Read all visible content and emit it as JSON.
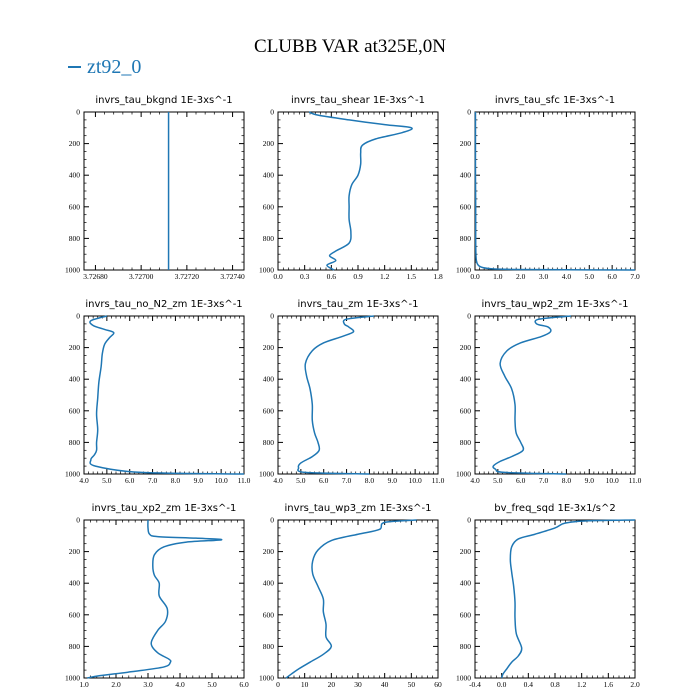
{
  "title": "CLUBB VAR at325E,0N",
  "legend": {
    "label": "zt92_0",
    "color": "#1f77b4"
  },
  "chart_data": [
    {
      "type": "line",
      "title": "invrs_tau_bkgnd   1E-3xs^-1",
      "xlim": [
        3.72675,
        3.72745
      ],
      "ylim": [
        0,
        1000
      ],
      "y_inverted": true,
      "xticks": [
        3.7268,
        3.727,
        3.7272,
        3.7274
      ],
      "xtick_labels": [
        "3.72680",
        "3.72700",
        "3.72720",
        "3.72740"
      ],
      "yticks": [
        0,
        200,
        400,
        600,
        800,
        1000
      ],
      "series": [
        {
          "x": [
            3.72712,
            3.72712
          ],
          "y": [
            0,
            1000
          ]
        }
      ]
    },
    {
      "type": "line",
      "title": "invrs_tau_shear   1E-3xs^-1",
      "xlim": [
        0,
        1.8
      ],
      "ylim": [
        0,
        1000
      ],
      "y_inverted": true,
      "xticks": [
        0,
        0.3,
        0.6,
        0.9,
        1.2,
        1.5,
        1.8
      ],
      "xtick_labels": [
        "0.0",
        "0.3",
        "0.6",
        "0.9",
        "1.2",
        "1.5",
        "1.8"
      ],
      "yticks": [
        0,
        200,
        400,
        600,
        800,
        1000
      ],
      "series": [
        {
          "x": [
            0.35,
            0.45,
            0.8,
            1.2,
            1.5,
            1.4,
            1.1,
            0.95,
            0.93,
            0.93,
            0.9,
            0.83,
            0.8,
            0.8,
            0.8,
            0.82,
            0.8,
            0.65,
            0.58,
            0.65,
            0.55,
            0.63
          ],
          "y": [
            0,
            20,
            50,
            80,
            100,
            130,
            170,
            210,
            260,
            330,
            400,
            460,
            530,
            600,
            680,
            760,
            830,
            880,
            910,
            940,
            970,
            1000
          ]
        }
      ]
    },
    {
      "type": "line",
      "title": "invrs_tau_sfc   1E-3xs^-1",
      "xlim": [
        0,
        7
      ],
      "ylim": [
        0,
        1000
      ],
      "y_inverted": true,
      "xticks": [
        0,
        1,
        2,
        3,
        4,
        5,
        6,
        7
      ],
      "xtick_labels": [
        "0.0",
        "1.0",
        "2.0",
        "3.0",
        "4.0",
        "5.0",
        "6.0",
        "7.0"
      ],
      "yticks": [
        0,
        200,
        400,
        600,
        800,
        1000
      ],
      "series": [
        {
          "x": [
            0.02,
            0.02,
            0.02,
            0.03,
            0.03,
            0.04,
            0.06,
            0.1,
            0.18,
            0.35,
            0.7,
            1.5,
            3.0,
            7.0
          ],
          "y": [
            0,
            200,
            400,
            600,
            800,
            900,
            940,
            960,
            975,
            985,
            992,
            996,
            998,
            1000
          ]
        }
      ]
    },
    {
      "type": "line",
      "title": "invrs_tau_no_N2_zm   1E-3xs^-1",
      "xlim": [
        4,
        11
      ],
      "ylim": [
        0,
        1000
      ],
      "y_inverted": true,
      "xticks": [
        4,
        5,
        6,
        7,
        8,
        9,
        10,
        11
      ],
      "xtick_labels": [
        "4.0",
        "5.0",
        "6.0",
        "7.0",
        "8.0",
        "9.0",
        "10.0",
        "11.0"
      ],
      "yticks": [
        0,
        200,
        400,
        600,
        800,
        1000
      ],
      "series": [
        {
          "x": [
            5.0,
            4.3,
            4.4,
            4.9,
            5.3,
            5.1,
            4.9,
            4.8,
            4.75,
            4.65,
            4.6,
            4.55,
            4.6,
            4.55,
            4.55,
            4.45,
            4.3,
            4.5,
            6.5,
            11.0
          ],
          "y": [
            0,
            30,
            60,
            85,
            105,
            140,
            180,
            240,
            320,
            420,
            520,
            620,
            720,
            800,
            850,
            880,
            910,
            950,
            990,
            1000
          ]
        }
      ]
    },
    {
      "type": "line",
      "title": "invrs_tau_zm   1E-3xs^-1",
      "xlim": [
        4,
        11
      ],
      "ylim": [
        0,
        1000
      ],
      "y_inverted": true,
      "xticks": [
        4,
        5,
        6,
        7,
        8,
        9,
        10,
        11
      ],
      "xtick_labels": [
        "4.0",
        "5.0",
        "6.0",
        "7.0",
        "8.0",
        "9.0",
        "10.0",
        "11.0"
      ],
      "yticks": [
        0,
        200,
        400,
        600,
        800,
        1000
      ],
      "series": [
        {
          "x": [
            8.2,
            7.0,
            6.9,
            7.1,
            7.3,
            6.8,
            6.0,
            5.5,
            5.2,
            5.25,
            5.4,
            5.5,
            5.5,
            5.6,
            5.75,
            5.8,
            5.5,
            5.0,
            4.9,
            5.2,
            8.0
          ],
          "y": [
            0,
            20,
            50,
            70,
            100,
            130,
            170,
            220,
            300,
            380,
            460,
            560,
            660,
            740,
            800,
            850,
            890,
            930,
            960,
            990,
            1000
          ]
        }
      ]
    },
    {
      "type": "line",
      "title": "invrs_tau_wp2_zm   1E-3xs^-1",
      "xlim": [
        4,
        11
      ],
      "ylim": [
        0,
        1000
      ],
      "y_inverted": true,
      "xticks": [
        4,
        5,
        6,
        7,
        8,
        9,
        10,
        11
      ],
      "xtick_labels": [
        "4.0",
        "5.0",
        "6.0",
        "7.0",
        "8.0",
        "9.0",
        "10.0",
        "11.0"
      ],
      "yticks": [
        0,
        200,
        400,
        600,
        800,
        1000
      ],
      "series": [
        {
          "x": [
            8.2,
            6.8,
            6.7,
            7.2,
            7.3,
            6.9,
            6.0,
            5.4,
            5.1,
            5.3,
            5.6,
            5.75,
            5.75,
            5.8,
            6.0,
            6.1,
            5.6,
            5.1,
            4.8,
            4.9,
            5.3,
            8.0
          ],
          "y": [
            0,
            20,
            50,
            70,
            100,
            130,
            170,
            220,
            300,
            380,
            460,
            560,
            660,
            740,
            800,
            850,
            890,
            920,
            950,
            970,
            990,
            1000
          ]
        }
      ]
    },
    {
      "type": "line",
      "title": "invrs_tau_xp2_zm   1E-3xs^-1",
      "xlim": [
        1,
        6
      ],
      "ylim": [
        0,
        1000
      ],
      "y_inverted": true,
      "xticks": [
        1,
        2,
        3,
        4,
        5,
        6
      ],
      "xtick_labels": [
        "1.0",
        "2.0",
        "3.0",
        "4.0",
        "5.0",
        "6.0"
      ],
      "yticks": [
        0,
        200,
        400,
        600,
        800,
        1000
      ],
      "series": [
        {
          "x": [
            3.0,
            3.0,
            3.05,
            3.3,
            4.5,
            5.3,
            4.2,
            3.5,
            3.2,
            3.15,
            3.2,
            3.35,
            3.35,
            3.6,
            3.55,
            3.3,
            3.1,
            3.3,
            3.65,
            3.7,
            3.5,
            2.5,
            1.5,
            1.1
          ],
          "y": [
            0,
            50,
            90,
            105,
            115,
            125,
            140,
            170,
            220,
            290,
            350,
            400,
            480,
            560,
            640,
            700,
            780,
            840,
            880,
            900,
            930,
            960,
            985,
            1000
          ]
        }
      ]
    },
    {
      "type": "line",
      "title": "invrs_tau_wp3_zm   1E-3xs^-1",
      "xlim": [
        0,
        60
      ],
      "ylim": [
        0,
        1000
      ],
      "y_inverted": true,
      "xticks": [
        0,
        10,
        20,
        30,
        40,
        50,
        60
      ],
      "xtick_labels": [
        "0",
        "10",
        "20",
        "30",
        "40",
        "50",
        "60"
      ],
      "yticks": [
        0,
        200,
        400,
        600,
        800,
        1000
      ],
      "series": [
        {
          "x": [
            52,
            40,
            38,
            30,
            20,
            15,
            13,
            13,
            15,
            17,
            17,
            18,
            18,
            20,
            17,
            12,
            8,
            5,
            3
          ],
          "y": [
            0,
            15,
            60,
            90,
            130,
            190,
            260,
            340,
            420,
            500,
            580,
            660,
            740,
            800,
            850,
            900,
            940,
            975,
            1000
          ]
        }
      ]
    },
    {
      "type": "line",
      "title": "bv_freq_sqd   1E-3x1/s^2",
      "xlim": [
        -0.4,
        2.0
      ],
      "ylim": [
        0,
        1000
      ],
      "y_inverted": true,
      "xticks": [
        -0.4,
        0,
        0.4,
        0.8,
        1.2,
        1.6,
        2.0
      ],
      "xtick_labels": [
        "-0.4",
        "0.0",
        "0.4",
        "0.8",
        "1.2",
        "1.6",
        "2.0"
      ],
      "yticks": [
        0,
        200,
        400,
        600,
        800,
        1000
      ],
      "series": [
        {
          "x": [
            2.0,
            1.3,
            0.95,
            0.8,
            0.5,
            0.25,
            0.15,
            0.13,
            0.15,
            0.18,
            0.2,
            0.2,
            0.22,
            0.3,
            0.25,
            0.15,
            0.08,
            0.02,
            0.0
          ],
          "y": [
            0,
            5,
            20,
            50,
            90,
            120,
            170,
            250,
            330,
            420,
            520,
            620,
            720,
            810,
            860,
            900,
            940,
            975,
            1000
          ]
        }
      ]
    }
  ]
}
